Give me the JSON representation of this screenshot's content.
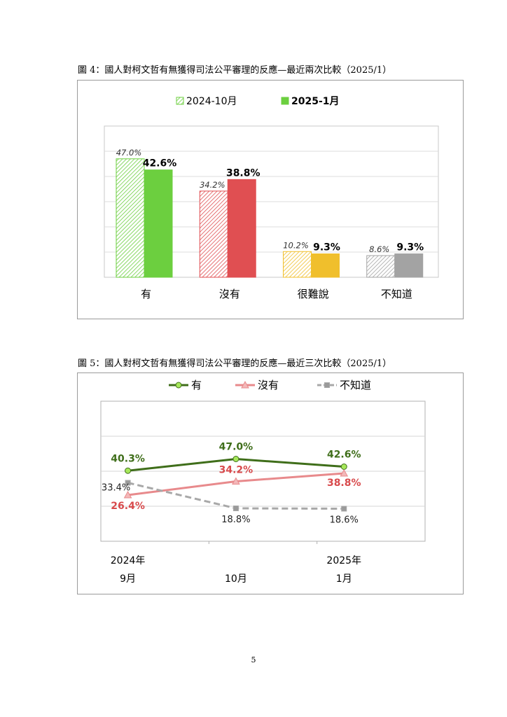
{
  "page_number": "5",
  "colors": {
    "yes": "#6ccf3f",
    "no": "#e04f52",
    "hard_to_say": "#f0bf2c",
    "dont_know": "#a3a3a3",
    "line_yes": "#3f6e1a",
    "line_no": "#e88a8c",
    "line_dont_know": "#a8a8a8",
    "label_no": "#d84a4c"
  },
  "chart_data": [
    {
      "type": "bar",
      "title": "圖 4：國人對柯文哲有無獲得司法公平審理的反應—最近兩次比較（2025/1）",
      "categories": [
        "有",
        "沒有",
        "很難說",
        "不知道"
      ],
      "series": [
        {
          "name": "2024-10月",
          "values": [
            47.0,
            34.2,
            10.2,
            8.6
          ],
          "labels": [
            "47.0%",
            "34.2%",
            "10.2%",
            "8.6%"
          ],
          "style": "hatched"
        },
        {
          "name": "2025-1月",
          "values": [
            42.6,
            38.8,
            9.3,
            9.3
          ],
          "labels": [
            "42.6%",
            "38.8%",
            "9.3%",
            "9.3%"
          ],
          "style": "solid"
        }
      ],
      "ylim": [
        0,
        60
      ],
      "grid": true,
      "legend": "top-center"
    },
    {
      "type": "line",
      "title": "圖 5：國人對柯文哲有無獲得司法公平審理的反應—最近三次比較（2025/1）",
      "x_year_labels": [
        "2024年",
        "",
        "2025年"
      ],
      "x_month_labels": [
        "9月",
        "10月",
        "1月"
      ],
      "series": [
        {
          "name": "有",
          "values": [
            40.3,
            47.0,
            42.6
          ],
          "labels": [
            "40.3%",
            "47.0%",
            "42.6%"
          ],
          "marker": "circle"
        },
        {
          "name": "沒有",
          "values": [
            26.4,
            34.2,
            38.8
          ],
          "labels": [
            "26.4%",
            "34.2%",
            "38.8%"
          ],
          "marker": "triangle"
        },
        {
          "name": "不知道",
          "values": [
            33.4,
            18.8,
            18.6
          ],
          "labels": [
            "33.4%",
            "18.8%",
            "18.6%"
          ],
          "marker": "square",
          "dashed": true
        }
      ],
      "ylim": [
        0,
        80
      ],
      "grid": true,
      "legend": "top"
    }
  ]
}
